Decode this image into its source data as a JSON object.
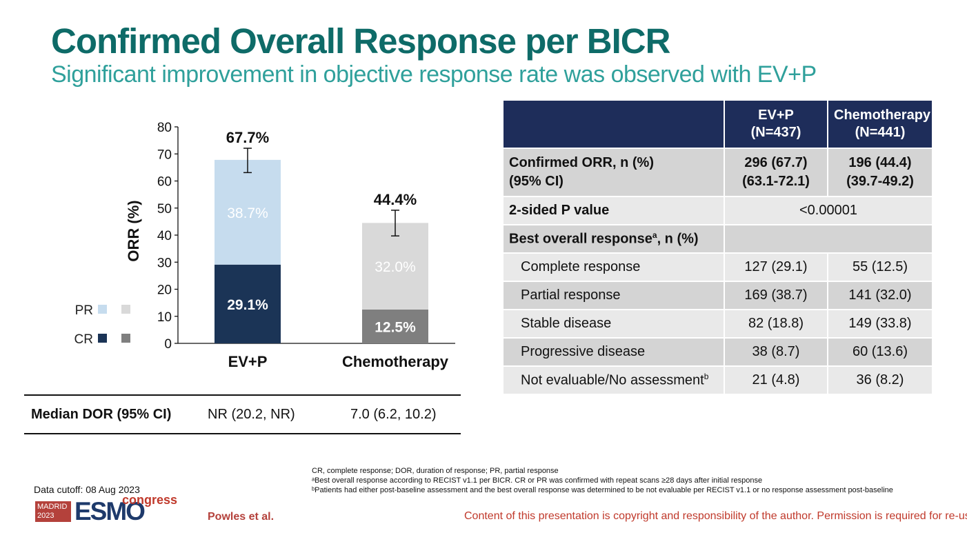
{
  "header": {
    "title": "Confirmed Overall Response per BICR",
    "subtitle": "Significant improvement in objective response rate was observed with EV+P"
  },
  "chart_data": {
    "type": "bar",
    "stacked": true,
    "ylabel": "ORR (%)",
    "ylim": [
      0,
      80
    ],
    "yticks": [
      "0",
      "10",
      "20",
      "30",
      "40",
      "50",
      "60",
      "70",
      "80"
    ],
    "categories": [
      "EV+P",
      "Chemotherapy"
    ],
    "series": [
      {
        "name": "CR",
        "values": [
          29.1,
          12.5
        ],
        "labels": [
          "29.1%",
          "12.5%"
        ],
        "colors": [
          "#1b3456",
          "#7f7f7f"
        ]
      },
      {
        "name": "PR",
        "values": [
          38.7,
          32.0
        ],
        "labels": [
          "38.7%",
          "32.0%"
        ],
        "colors": [
          "#c6dcee",
          "#d9d9d9"
        ]
      }
    ],
    "totals": [
      "67.7%",
      "44.4%"
    ],
    "error_bars": [
      [
        63.1,
        72.1
      ],
      [
        39.7,
        49.2
      ]
    ],
    "legend": [
      {
        "label": "PR",
        "colors": [
          "#c6dcee",
          "#d9d9d9"
        ]
      },
      {
        "label": "CR",
        "colors": [
          "#1b3456",
          "#7f7f7f"
        ]
      }
    ]
  },
  "dor": {
    "label": "Median DOR (95% CI)",
    "ev_p": "NR (20.2, NR)",
    "chemo": "7.0 (6.2, 10.2)"
  },
  "table": {
    "headers": [
      {
        "line1": "",
        "line2": ""
      },
      {
        "line1": "EV+P",
        "line2": "(N=437)"
      },
      {
        "line1": "Chemotherapy",
        "line2": "(N=441)"
      }
    ],
    "orr": {
      "label1": "Confirmed ORR, n (%)",
      "label2": "(95% CI)",
      "ev_p1": "296 (67.7)",
      "ev_p2": "(63.1-72.1)",
      "chemo1": "196 (44.4)",
      "chemo2": "(39.7-49.2)"
    },
    "pvalue": {
      "label": "2-sided P value",
      "value": "<0.00001"
    },
    "bor": {
      "label": "Best overall response",
      "sup": "a",
      "suffix": ", n (%)"
    },
    "rows": [
      {
        "label": "Complete response",
        "ev_p": "127 (29.1)",
        "chemo": "55 (12.5)"
      },
      {
        "label": "Partial response",
        "ev_p": "169 (38.7)",
        "chemo": "141 (32.0)"
      },
      {
        "label": "Stable disease",
        "ev_p": "82 (18.8)",
        "chemo": "149 (33.8)"
      },
      {
        "label": "Progressive disease",
        "ev_p": "38 (8.7)",
        "chemo": "60 (13.6)"
      },
      {
        "label": "Not evaluable/No assessment",
        "sup": "b",
        "ev_p": "21 (4.8)",
        "chemo": "36 (8.2)"
      }
    ]
  },
  "footnotes": {
    "line1": "CR, complete response; DOR, duration of response; PR, partial response",
    "line2": "ᵃBest overall response according to RECIST v1.1 per BICR. CR or PR was confirmed with repeat scans ≥28 days after initial response",
    "line3": "ᵇPatients had either post-baseline assessment and the best overall response was determined to be not evaluable per RECIST v1.1 or no response assessment post-baseline"
  },
  "footer": {
    "cutoff": "Data cutoff: 08 Aug 2023",
    "logo_city": "MADRID",
    "logo_year": "2023",
    "logo_name": "ESMO",
    "logo_congress": "congress",
    "author": "Powles et al.",
    "copyright": "Content of this presentation is copyright and responsibility of the author. Permission is required for re-use."
  }
}
